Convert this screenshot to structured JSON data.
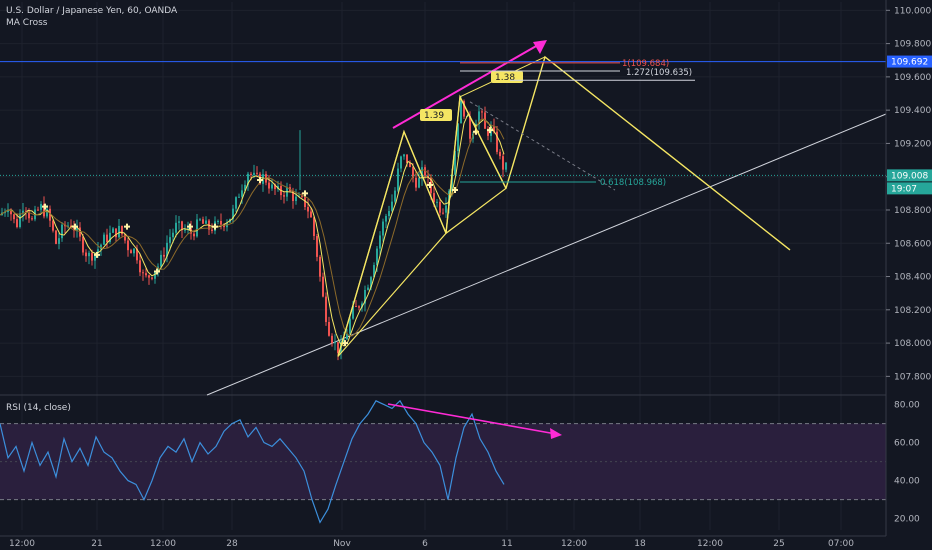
{
  "header": {
    "symbol_line": "U.S. Dollar / Japanese Yen, 60, OANDA",
    "indicator": "MA Cross"
  },
  "rsi": {
    "label": "RSI (14, close)",
    "upper_band": 70,
    "lower_band": 30,
    "ticks": [
      "80.00",
      "60.00",
      "40.00",
      "20.00"
    ],
    "series_color": "#3c8fdc",
    "band_fill": "#2a1f3d"
  },
  "price_axis": {
    "ticks": [
      "110.000",
      "109.800",
      "109.600",
      "109.400",
      "109.200",
      "109.000",
      "108.800",
      "108.600",
      "108.400",
      "108.200",
      "108.000",
      "107.800"
    ],
    "markers": [
      {
        "value": 109.692,
        "label": "109.692",
        "color": "#2962ff"
      },
      {
        "value": 109.008,
        "label": "109.008",
        "color": "#26a69a"
      },
      {
        "label": "19:07",
        "color": "#26a69a"
      }
    ]
  },
  "time_axis": {
    "ticks": [
      "12:00",
      "21",
      "12:00",
      "28",
      "Nov",
      "6",
      "11",
      "12:00",
      "18",
      "12:00",
      "25",
      "07:00"
    ]
  },
  "annotations": {
    "fib_labels": [
      "1(109.684)",
      "1.272(109.635)",
      "0.618(108.968)"
    ],
    "pattern_ratios": [
      "1.39",
      "1.38"
    ]
  },
  "colors": {
    "background": "#131722",
    "up_candle": "#26a69a",
    "down_candle": "#ef5350",
    "pattern_lines": "#f5e663",
    "projection": "#ff2bd6",
    "trendline": "#d1d4dc",
    "fast_ma": "#f5e663"
  },
  "chart_data": [
    {
      "type": "candlestick",
      "title": "U.S. Dollar / Japanese Yen, 60, OANDA",
      "ylim": [
        107.7,
        110.05
      ],
      "close_path": [
        [
          0,
          108.77
        ],
        [
          8,
          108.83
        ],
        [
          16,
          108.7
        ],
        [
          24,
          108.85
        ],
        [
          32,
          108.73
        ],
        [
          40,
          108.82
        ],
        [
          48,
          108.77
        ],
        [
          56,
          108.6
        ],
        [
          64,
          108.7
        ],
        [
          72,
          108.72
        ],
        [
          80,
          108.62
        ],
        [
          88,
          108.52
        ],
        [
          96,
          108.55
        ],
        [
          104,
          108.62
        ],
        [
          112,
          108.66
        ],
        [
          120,
          108.68
        ],
        [
          128,
          108.58
        ],
        [
          136,
          108.55
        ],
        [
          144,
          108.38
        ],
        [
          152,
          108.42
        ],
        [
          160,
          108.48
        ],
        [
          168,
          108.62
        ],
        [
          176,
          108.7
        ],
        [
          184,
          108.68
        ],
        [
          192,
          108.66
        ],
        [
          200,
          108.73
        ],
        [
          208,
          108.69
        ],
        [
          216,
          108.7
        ],
        [
          224,
          108.73
        ],
        [
          232,
          108.77
        ],
        [
          240,
          108.92
        ],
        [
          248,
          109.03
        ],
        [
          256,
          108.98
        ],
        [
          264,
          109.0
        ],
        [
          272,
          108.93
        ],
        [
          280,
          108.9
        ],
        [
          288,
          108.92
        ],
        [
          296,
          108.86
        ],
        [
          304,
          108.85
        ],
        [
          310,
          108.78
        ],
        [
          316,
          108.58
        ],
        [
          322,
          108.3
        ],
        [
          328,
          108.1
        ],
        [
          334,
          108.0
        ],
        [
          340,
          107.95
        ],
        [
          346,
          108.05
        ],
        [
          352,
          108.18
        ],
        [
          358,
          108.22
        ],
        [
          364,
          108.3
        ],
        [
          370,
          108.4
        ],
        [
          376,
          108.55
        ],
        [
          382,
          108.7
        ],
        [
          388,
          108.8
        ],
        [
          394,
          108.88
        ],
        [
          400,
          109.1
        ],
        [
          406,
          109.12
        ],
        [
          412,
          109.0
        ],
        [
          418,
          108.96
        ],
        [
          424,
          109.05
        ],
        [
          430,
          108.92
        ],
        [
          436,
          108.85
        ],
        [
          442,
          108.8
        ],
        [
          448,
          108.9
        ],
        [
          454,
          109.1
        ],
        [
          458,
          109.35
        ],
        [
          462,
          109.45
        ],
        [
          466,
          109.35
        ],
        [
          470,
          109.25
        ],
        [
          474,
          109.3
        ],
        [
          478,
          109.4
        ],
        [
          482,
          109.35
        ],
        [
          486,
          109.25
        ],
        [
          490,
          109.3
        ],
        [
          496,
          109.2
        ],
        [
          500,
          109.1
        ],
        [
          504,
          109.05
        ]
      ]
    },
    {
      "type": "line",
      "title": "RSI (14, close)",
      "ylim": [
        14,
        84
      ],
      "x": [
        0,
        8,
        16,
        24,
        32,
        40,
        48,
        56,
        64,
        72,
        80,
        88,
        96,
        104,
        112,
        120,
        128,
        136,
        144,
        152,
        160,
        168,
        176,
        184,
        192,
        200,
        208,
        216,
        224,
        232,
        240,
        248,
        256,
        264,
        272,
        280,
        288,
        296,
        304,
        312,
        320,
        328,
        336,
        344,
        352,
        360,
        368,
        376,
        384,
        392,
        400,
        408,
        416,
        424,
        432,
        440,
        448,
        456,
        464,
        472,
        480,
        488,
        496,
        504
      ],
      "values": [
        70,
        52,
        58,
        45,
        60,
        48,
        55,
        42,
        62,
        50,
        57,
        48,
        63,
        55,
        52,
        45,
        40,
        38,
        30,
        40,
        52,
        58,
        55,
        62,
        50,
        60,
        54,
        58,
        66,
        70,
        72,
        63,
        68,
        60,
        58,
        62,
        57,
        52,
        45,
        30,
        18,
        25,
        38,
        50,
        62,
        70,
        75,
        82,
        80,
        78,
        82,
        75,
        70,
        60,
        55,
        48,
        30,
        52,
        68,
        75,
        62,
        55,
        45,
        38
      ]
    }
  ]
}
